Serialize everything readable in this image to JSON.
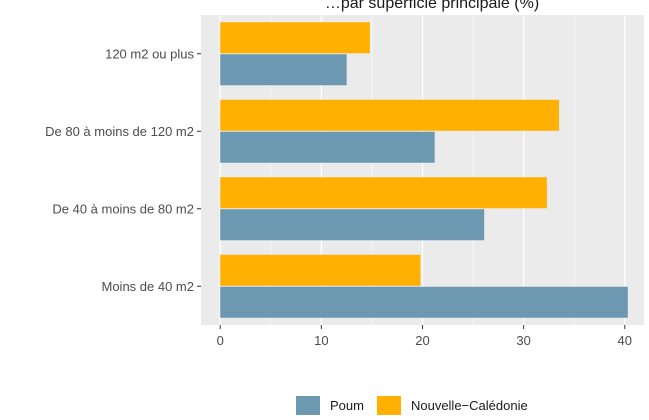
{
  "chart_data": {
    "type": "bar",
    "orientation": "horizontal",
    "title": "…par superficie principale (%)",
    "categories": [
      "Moins de 40 m2",
      "De 40 à moins de 80 m2",
      "De 80 à moins de 120 m2",
      "120 m2 ou plus"
    ],
    "series": [
      {
        "name": "Poum",
        "color": "#6c98b2",
        "values": [
          40.3,
          26.1,
          21.2,
          12.5
        ]
      },
      {
        "name": "Nouvelle−Calédonie",
        "color": "#ffb000",
        "values": [
          19.8,
          32.3,
          33.5,
          14.8
        ]
      }
    ],
    "xlim": [
      -1.9,
      41.9
    ],
    "xticks": [
      0,
      10,
      20,
      30,
      40
    ],
    "xlabel": "",
    "ylabel": "",
    "grid": true,
    "legend_position": "bottom",
    "panel_background": "#ebebeb"
  }
}
